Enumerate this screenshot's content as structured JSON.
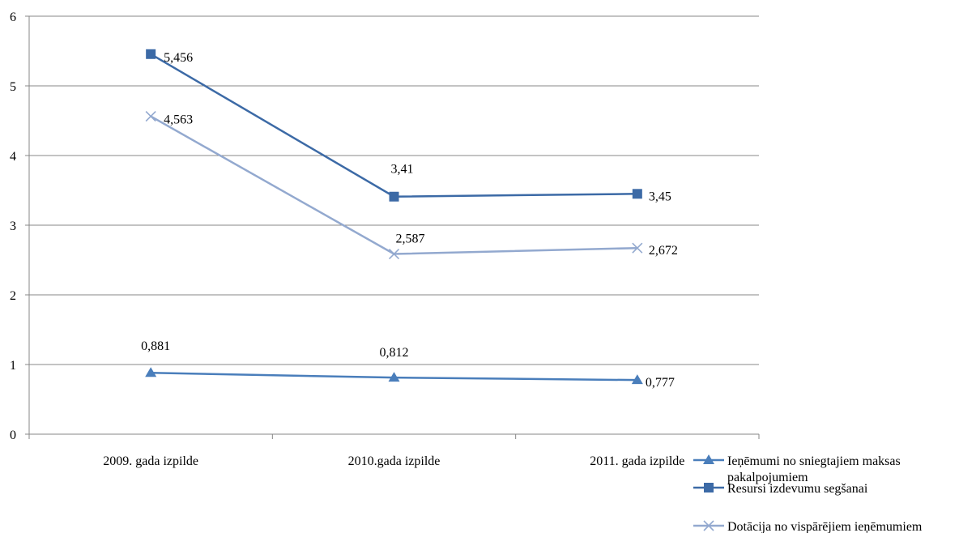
{
  "chart_data": {
    "type": "line",
    "title": "",
    "xlabel": "",
    "ylabel": "",
    "categories": [
      "2009. gada izpilde",
      "2010.gada izpilde",
      "2011. gada izpilde"
    ],
    "ylim": [
      0,
      6
    ],
    "yticks": [
      0,
      1,
      2,
      3,
      4,
      5,
      6
    ],
    "grid": true,
    "legend_position": "bottom-right",
    "series": [
      {
        "name": "Ieņēmumi no sniegtajiem maksas pakalpojumiem",
        "values": [
          0.881,
          0.812,
          0.777
        ],
        "labels": [
          "0,881",
          "0,812",
          "0,777"
        ],
        "marker": "triangle",
        "color": "#4a7ebb"
      },
      {
        "name": "Resursi izdevumu segšanai",
        "values": [
          5.456,
          3.41,
          3.45
        ],
        "labels": [
          "5,456",
          "3,41",
          "3,45"
        ],
        "marker": "square",
        "color": "#3c6aa6"
      },
      {
        "name": "Dotācija no vispārējiem ieņēmumiem",
        "values": [
          4.563,
          2.587,
          2.672
        ],
        "labels": [
          "4,563",
          "2,587",
          "2,672"
        ],
        "marker": "x",
        "color": "#93a9cf"
      }
    ]
  }
}
